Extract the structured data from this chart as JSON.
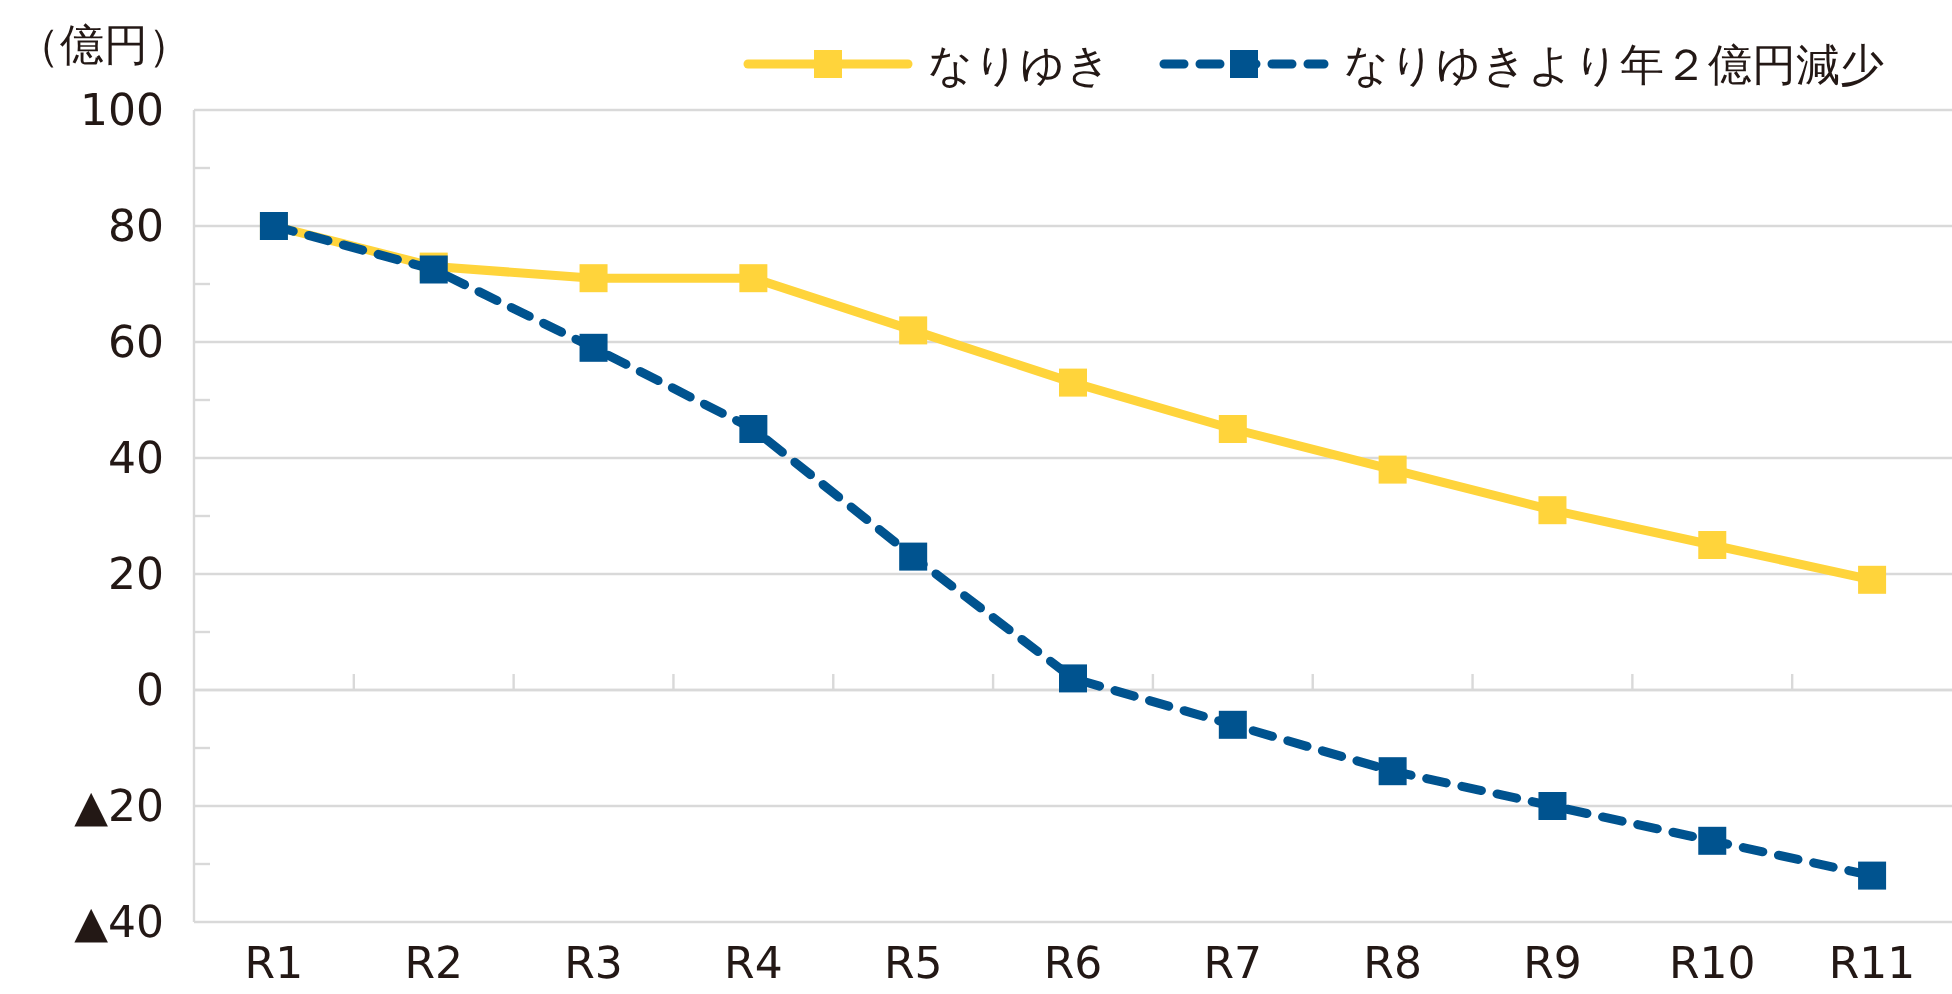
{
  "chart_data": {
    "type": "line",
    "ylabel": "（億円）",
    "categories": [
      "R1",
      "R2",
      "R3",
      "R4",
      "R5",
      "R6",
      "R7",
      "R8",
      "R9",
      "R10",
      "R11"
    ],
    "series": [
      {
        "name": "なりゆき",
        "color": "#ffd43b",
        "line_style": "solid",
        "values": [
          80,
          73,
          71,
          71,
          62,
          53,
          45,
          38,
          31,
          25,
          19
        ]
      },
      {
        "name": "なりゆきより年２億円減少",
        "color": "#00538f",
        "line_style": "dashed",
        "values": [
          80,
          72.5,
          59,
          45,
          23,
          2,
          -6,
          -14,
          -20,
          -26,
          -32
        ]
      }
    ],
    "ylim": [
      -40,
      100
    ],
    "yticks": [
      {
        "value": -40,
        "label": "▲40"
      },
      {
        "value": -30,
        "label": null
      },
      {
        "value": -20,
        "label": "▲20"
      },
      {
        "value": -10,
        "label": null
      },
      0,
      {
        "value": 10,
        "label": null
      },
      20,
      {
        "value": 30,
        "label": null
      },
      40,
      {
        "value": 50,
        "label": null
      },
      60,
      {
        "value": 70,
        "label": null
      },
      80,
      {
        "value": 90,
        "label": null
      },
      100
    ],
    "grid": "y",
    "legend": "top right",
    "marker": "square"
  }
}
